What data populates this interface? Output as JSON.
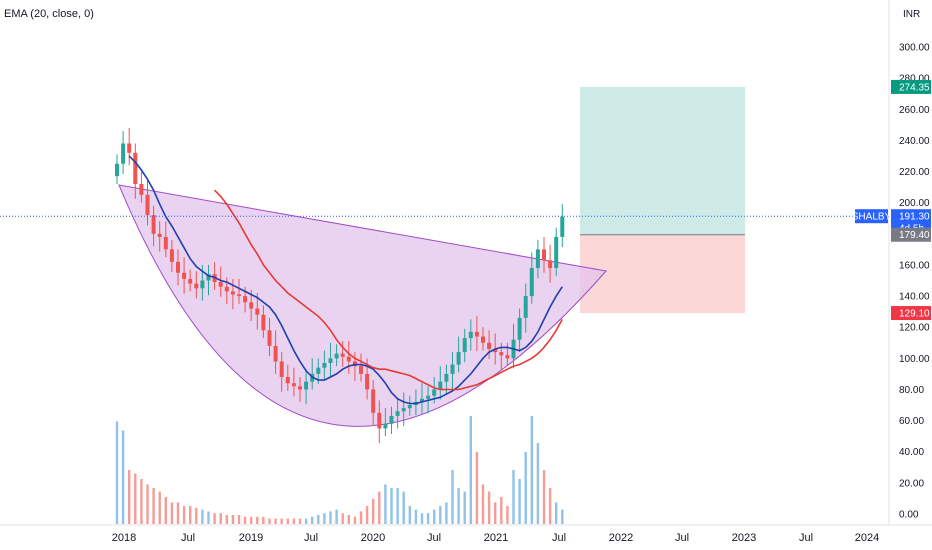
{
  "indicator": {
    "label": "EMA (20, close, 0)"
  },
  "colors": {
    "up": "#26a69a",
    "down": "#ef5350",
    "vol_up": "#7fb6e8",
    "vol_down": "#f28b82",
    "ema20": "#1f3fb0",
    "ema50": "#e53935",
    "cup_fill": "#e3c4ec",
    "cup_stroke": "#a24bc5",
    "target_fill": "#cdeae6",
    "stop_fill": "#fbd7d7",
    "last_price": "#2962ff"
  },
  "chart_data": {
    "type": "candlestick",
    "currency": "INR",
    "y_axis": {
      "ticks": [
        "300.00",
        "280.00",
        "260.00",
        "240.00",
        "220.00",
        "200.00",
        "180.00",
        "160.00",
        "140.00",
        "120.00",
        "100.00",
        "80.00",
        "60.00",
        "40.00",
        "20.00",
        "0.00"
      ]
    },
    "x_axis": {
      "ticks": [
        "2018",
        "Jul",
        "2019",
        "Jul",
        "2020",
        "Jul",
        "2021",
        "Jul",
        "2022",
        "Jul",
        "2023",
        "Jul",
        "2024"
      ]
    },
    "symbol": "SHALBY",
    "last_price": 191.3,
    "countdown": "4d 5h",
    "position": {
      "target": 274.35,
      "entry": 179.4,
      "stop": 129.1
    },
    "closes": [
      225,
      238,
      232,
      212,
      205,
      192,
      180,
      178,
      170,
      162,
      155,
      151,
      148,
      145,
      150,
      154,
      149,
      146,
      143,
      141,
      140,
      136,
      132,
      128,
      118,
      108,
      98,
      88,
      84,
      82,
      80,
      85,
      90,
      94,
      97,
      100,
      103,
      101,
      98,
      95,
      90,
      80,
      65,
      55,
      58,
      63,
      66,
      68,
      70,
      72,
      74,
      76,
      80,
      85,
      90,
      96,
      104,
      113,
      117,
      114,
      110,
      106,
      104,
      102,
      100,
      112,
      126,
      140,
      158,
      170,
      163,
      158,
      178,
      191
    ],
    "ema20": [
      230,
      226,
      221,
      215,
      208,
      199,
      191,
      185,
      178,
      171,
      164,
      159,
      156,
      153,
      152,
      150,
      149,
      147,
      145,
      143,
      141,
      139,
      136,
      133,
      128,
      121,
      113,
      105,
      98,
      92,
      88,
      86,
      86,
      88,
      90,
      93,
      95,
      96,
      96,
      95,
      93,
      89,
      84,
      78,
      74,
      72,
      71,
      71,
      72,
      73,
      74,
      75,
      77,
      79,
      82,
      86,
      90,
      95,
      100,
      104,
      106,
      107,
      107,
      106,
      105,
      107,
      111,
      117,
      125,
      133,
      140,
      146
    ],
    "ema50": [
      208,
      204,
      199,
      193,
      187,
      180,
      173,
      167,
      160,
      155,
      150,
      146,
      142,
      139,
      136,
      133,
      130,
      127,
      123,
      118,
      112,
      107,
      103,
      100,
      98,
      96,
      94,
      93,
      93,
      92,
      91,
      90,
      89,
      87,
      85,
      83,
      81,
      80,
      80,
      80,
      80,
      81,
      82,
      83,
      85,
      87,
      89,
      91,
      93,
      95,
      96,
      98,
      100,
      103,
      107,
      112,
      118,
      125
    ],
    "volume": [
      57,
      52,
      30,
      28,
      25,
      22,
      20,
      18,
      15,
      12,
      12,
      10,
      10,
      9,
      8,
      7,
      6,
      6,
      5,
      5,
      5,
      4,
      4,
      4,
      4,
      3,
      3,
      3,
      3,
      3,
      3,
      3,
      4,
      5,
      6,
      7,
      8,
      6,
      5,
      4,
      7,
      10,
      14,
      18,
      22,
      20,
      20,
      18,
      10,
      8,
      6,
      6,
      8,
      10,
      12,
      30,
      20,
      18,
      60,
      40,
      22,
      18,
      12,
      15,
      10,
      30,
      25,
      40,
      60,
      45,
      30,
      20,
      12,
      8
    ]
  }
}
